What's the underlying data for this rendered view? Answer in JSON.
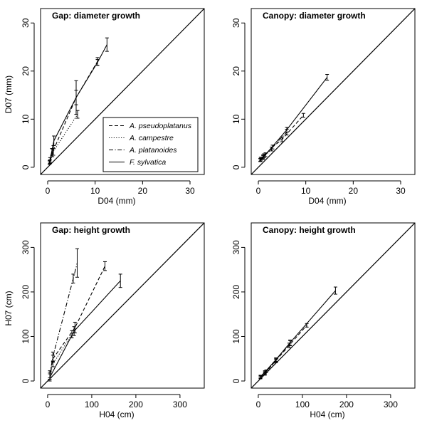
{
  "chart_data": [
    {
      "type": "line",
      "title": "Gap: diameter growth",
      "xlabel": "D04 (mm)",
      "ylabel": "D07 (mm)",
      "xlim": [
        -1.5,
        33
      ],
      "ylim": [
        -1.5,
        33
      ],
      "xticks": [
        0,
        10,
        20,
        30
      ],
      "yticks": [
        0,
        10,
        20,
        30
      ],
      "identity_line": true,
      "legend": {
        "placement": "center-right",
        "entries": [
          {
            "name": "A. pseudoplatanus",
            "dash": "dashed"
          },
          {
            "name": "A. campestre",
            "dash": "dotted"
          },
          {
            "name": "A. platanoides",
            "dash": "dashdot"
          },
          {
            "name": "F. sylvatica",
            "dash": "solid"
          }
        ]
      },
      "series": [
        {
          "name": "A. pseudoplatanus",
          "dash": "dashed",
          "points": [
            {
              "x": 0.5,
              "y": 1.2,
              "err": 0.4
            },
            {
              "x": 1.2,
              "y": 3.5,
              "err": 1.0
            },
            {
              "x": 6.0,
              "y": 14.5,
              "err": 3.5
            },
            {
              "x": 10.5,
              "y": 22.0,
              "err": 0.8
            }
          ]
        },
        {
          "name": "A. campestre",
          "dash": "dotted",
          "points": [
            {
              "x": 0.4,
              "y": 1.0,
              "err": 0.4
            },
            {
              "x": 1.0,
              "y": 3.0,
              "err": 0.8
            },
            {
              "x": 6.3,
              "y": 11.0,
              "err": 0.8
            }
          ]
        },
        {
          "name": "A. platanoides",
          "dash": "dashdot",
          "points": [
            {
              "x": 0.4,
              "y": 1.0,
              "err": 0.3
            },
            {
              "x": 0.9,
              "y": 3.2,
              "err": 0.7
            }
          ]
        },
        {
          "name": "F. sylvatica",
          "dash": "solid",
          "points": [
            {
              "x": 0.5,
              "y": 1.5,
              "err": 0.5
            },
            {
              "x": 1.3,
              "y": 5.5,
              "err": 1.0
            },
            {
              "x": 6.0,
              "y": 14.5,
              "err": 1.5
            },
            {
              "x": 10.5,
              "y": 21.8,
              "err": 0.6
            },
            {
              "x": 12.5,
              "y": 25.5,
              "err": 1.4
            }
          ]
        }
      ]
    },
    {
      "type": "line",
      "title": "Canopy: diameter growth",
      "xlabel": "D04 (mm)",
      "ylabel": "",
      "xlim": [
        -1.5,
        33
      ],
      "ylim": [
        -1.5,
        33
      ],
      "xticks": [
        0,
        10,
        20,
        30
      ],
      "yticks": [
        0,
        10,
        20,
        30
      ],
      "identity_line": true,
      "series": [
        {
          "name": "A. pseudoplatanus",
          "dash": "dashed",
          "points": [
            {
              "x": 0.4,
              "y": 1.5,
              "err": 0.3
            },
            {
              "x": 1.0,
              "y": 2.2,
              "err": 0.4
            },
            {
              "x": 3.0,
              "y": 4.2,
              "err": 0.4
            },
            {
              "x": 5.0,
              "y": 5.8,
              "err": 0.5
            },
            {
              "x": 9.5,
              "y": 10.8,
              "err": 0.4
            }
          ]
        },
        {
          "name": "A. campestre",
          "dash": "dotted",
          "points": [
            {
              "x": 0.4,
              "y": 1.5,
              "err": 0.3
            },
            {
              "x": 1.0,
              "y": 2.0,
              "err": 0.4
            },
            {
              "x": 2.8,
              "y": 3.8,
              "err": 0.4
            }
          ]
        },
        {
          "name": "A. platanoides",
          "dash": "dashdot",
          "points": [
            {
              "x": 0.5,
              "y": 1.6,
              "err": 0.3
            },
            {
              "x": 1.2,
              "y": 2.4,
              "err": 0.4
            },
            {
              "x": 6.0,
              "y": 7.3,
              "err": 0.6
            }
          ]
        },
        {
          "name": "F. sylvatica",
          "dash": "solid",
          "points": [
            {
              "x": 0.5,
              "y": 1.8,
              "err": 0.3
            },
            {
              "x": 1.5,
              "y": 2.6,
              "err": 0.4
            },
            {
              "x": 6.0,
              "y": 7.8,
              "err": 0.5
            },
            {
              "x": 14.5,
              "y": 18.7,
              "err": 0.6
            }
          ]
        }
      ]
    },
    {
      "type": "line",
      "title": "Gap: height growth",
      "xlabel": "H04 (cm)",
      "ylabel": "H07 (cm)",
      "xlim": [
        -16,
        355
      ],
      "ylim": [
        -16,
        355
      ],
      "xticks": [
        0,
        100,
        200,
        300
      ],
      "yticks": [
        0,
        100,
        200,
        300
      ],
      "identity_line": true,
      "series": [
        {
          "name": "A. pseudoplatanus",
          "dash": "dashed",
          "points": [
            {
              "x": 5,
              "y": 12,
              "err": 8
            },
            {
              "x": 12,
              "y": 50,
              "err": 8
            },
            {
              "x": 62,
              "y": 120,
              "err": 12
            },
            {
              "x": 130,
              "y": 258,
              "err": 10
            }
          ]
        },
        {
          "name": "A. campestre",
          "dash": "dotted",
          "points": [
            {
              "x": 5,
              "y": 10,
              "err": 6
            },
            {
              "x": 12,
              "y": 38,
              "err": 6
            },
            {
              "x": 55,
              "y": 105,
              "err": 8
            }
          ]
        },
        {
          "name": "A. platanoides",
          "dash": "dashdot",
          "points": [
            {
              "x": 5,
              "y": 15,
              "err": 8
            },
            {
              "x": 12,
              "y": 55,
              "err": 10
            },
            {
              "x": 58,
              "y": 230,
              "err": 10
            },
            {
              "x": 67,
              "y": 265,
              "err": 32
            }
          ]
        },
        {
          "name": "F. sylvatica",
          "dash": "solid",
          "points": [
            {
              "x": 5,
              "y": 8,
              "err": 8
            },
            {
              "x": 60,
              "y": 112,
              "err": 10
            },
            {
              "x": 165,
              "y": 225,
              "err": 15
            }
          ]
        }
      ]
    },
    {
      "type": "line",
      "title": "Canopy: height growth",
      "xlabel": "H04 (cm)",
      "ylabel": "",
      "xlim": [
        -16,
        355
      ],
      "ylim": [
        -16,
        355
      ],
      "xticks": [
        0,
        100,
        200,
        300
      ],
      "yticks": [
        0,
        100,
        200,
        300
      ],
      "identity_line": true,
      "series": [
        {
          "name": "A. pseudoplatanus",
          "dash": "dashed",
          "points": [
            {
              "x": 5,
              "y": 8,
              "err": 3
            },
            {
              "x": 15,
              "y": 18,
              "err": 3
            },
            {
              "x": 40,
              "y": 46,
              "err": 4
            },
            {
              "x": 70,
              "y": 80,
              "err": 5
            },
            {
              "x": 110,
              "y": 125,
              "err": 4
            }
          ]
        },
        {
          "name": "A. campestre",
          "dash": "dotted",
          "points": [
            {
              "x": 5,
              "y": 8,
              "err": 3
            },
            {
              "x": 15,
              "y": 16,
              "err": 3
            },
            {
              "x": 40,
              "y": 45,
              "err": 4
            }
          ]
        },
        {
          "name": "A. platanoides",
          "dash": "dashdot",
          "points": [
            {
              "x": 5,
              "y": 9,
              "err": 3
            },
            {
              "x": 18,
              "y": 22,
              "err": 3
            },
            {
              "x": 72,
              "y": 85,
              "err": 6
            }
          ]
        },
        {
          "name": "F. sylvatica",
          "dash": "solid",
          "points": [
            {
              "x": 5,
              "y": 10,
              "err": 3
            },
            {
              "x": 15,
              "y": 20,
              "err": 3
            },
            {
              "x": 40,
              "y": 48,
              "err": 4
            },
            {
              "x": 72,
              "y": 86,
              "err": 6
            },
            {
              "x": 175,
              "y": 203,
              "err": 8
            }
          ]
        }
      ]
    }
  ]
}
